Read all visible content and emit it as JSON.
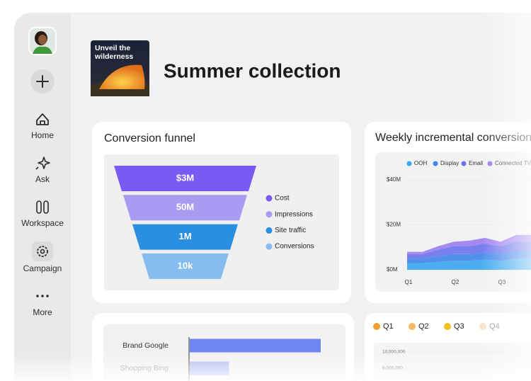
{
  "sidebar": {
    "items": [
      "Home",
      "Ask",
      "Workspace",
      "Campaign",
      "More"
    ]
  },
  "header": {
    "thumbnail_lines": [
      "Unveil the",
      "wilderness"
    ],
    "title": "Summer collection"
  },
  "funnel": {
    "title": "Conversion funnel",
    "stages": [
      {
        "label": "$3M",
        "name": "Cost",
        "color": "#7a5af5"
      },
      {
        "label": "50M",
        "name": "Impressions",
        "color": "#a79cf2"
      },
      {
        "label": "1M",
        "name": "Site traffic",
        "color": "#2a8fe3"
      },
      {
        "label": "10k",
        "name": "Conversions",
        "color": "#86bdf0"
      }
    ]
  },
  "weekly": {
    "title": "Weekly incremental conversions",
    "type": "stacked-area",
    "ylim": [
      0,
      40
    ],
    "yticks": [
      {
        "value": 40,
        "label": "$40M"
      },
      {
        "value": 20,
        "label": "$20M"
      },
      {
        "value": 0,
        "label": "$0M"
      }
    ],
    "xticks": [
      "Q1",
      "Q2",
      "Q3"
    ],
    "series": [
      {
        "name": "OOH",
        "color": "#39a6f0",
        "values": [
          3,
          3,
          3.5,
          4,
          4,
          4.5,
          4,
          5,
          5
        ]
      },
      {
        "name": "Display",
        "color": "#3f86ea",
        "values": [
          2,
          2,
          2.5,
          3,
          3,
          3.2,
          3,
          3.5,
          3.5
        ]
      },
      {
        "name": "Email",
        "color": "#6a72ee",
        "values": [
          2,
          2,
          3,
          3.5,
          3.5,
          4,
          3.5,
          4,
          4
        ]
      },
      {
        "name": "Connected TV",
        "color": "#9c7cf0",
        "values": [
          1,
          1,
          1.5,
          2,
          2.5,
          2.5,
          2,
          3,
          3
        ]
      }
    ]
  },
  "channels": {
    "type": "bar",
    "categories": [
      "Brand Google",
      "Shopping Bing"
    ],
    "values": [
      100,
      30
    ],
    "color": "#6f86f2"
  },
  "quarters": {
    "legend": [
      {
        "name": "Q1",
        "color": "#f0a030"
      },
      {
        "name": "Q2",
        "color": "#f6b866"
      },
      {
        "name": "Q3",
        "color": "#f0c020"
      },
      {
        "name": "Q4",
        "color": "#f8e4cc"
      }
    ],
    "ylim": [
      4000000,
      12000000
    ],
    "yticks": [
      {
        "value": 10000000,
        "label": "10,000,000"
      },
      {
        "value": 8000000,
        "label": "8,000,000"
      }
    ]
  }
}
